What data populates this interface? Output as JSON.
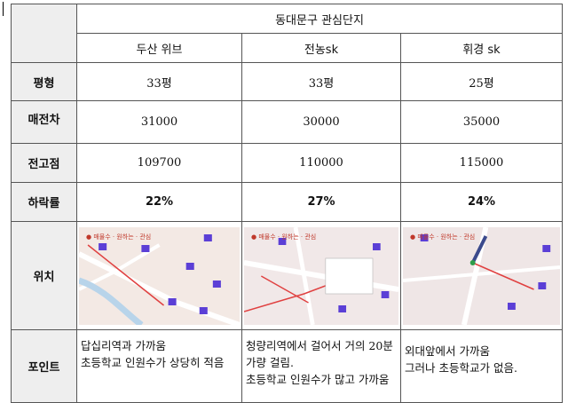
{
  "title": "동대문구 관심단지",
  "columns": [
    "두산 위브",
    "전농sk",
    "휘경 sk"
  ],
  "rows": [
    {
      "label": "평형",
      "values": [
        "33평",
        "33평",
        "25평"
      ]
    },
    {
      "label": "매전차",
      "values": [
        "31000",
        "30000",
        "35000"
      ]
    },
    {
      "label": "전고점",
      "values": [
        "109700",
        "110000",
        "115000"
      ]
    },
    {
      "label": "하락률",
      "values": [
        "22%",
        "27%",
        "24%"
      ]
    }
  ],
  "location_label": "위치",
  "maps": [
    {
      "name": "map-dusan",
      "header": "● 매물수 · 원하는 · 관심",
      "bg": "#f3e9e4"
    },
    {
      "name": "map-jeonnong",
      "header": "● 매물수 · 원하는 · 관심",
      "bg": "#f1e8e8"
    },
    {
      "name": "map-hwigyeong",
      "header": "● 매물수 · 원하는 · 관심",
      "bg": "#efe6e6"
    }
  ],
  "point_label": "포인트",
  "points": [
    [
      "답십리역과 가까움",
      "초등학교 인원수가 상당히 적음"
    ],
    [
      "청량리역에서 걸어서 거의 20분 가량 걸림.",
      "초등학교 인원수가 많고 가까움"
    ],
    [
      "외대앞에서 가까움",
      "그러나 초등학교가 없음."
    ]
  ],
  "colors": {
    "label_bg": "#eeeeee",
    "border": "#555555",
    "map_marker": "#5b3fd6",
    "map_route": "#e04040"
  }
}
